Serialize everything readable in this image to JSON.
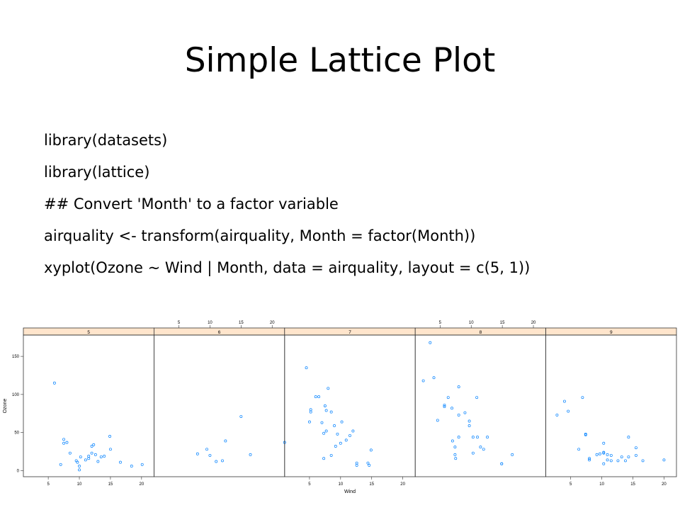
{
  "slide": {
    "title": "Simple Lattice Plot",
    "code_lines": [
      "library(datasets)",
      "library(lattice)",
      "## Convert 'Month' to a factor variable",
      "airquality <- transform(airquality, Month = factor(Month))",
      "xyplot(Ozone ~ Wind | Month, data = airquality, layout = c(5, 1))"
    ]
  },
  "chart_data": {
    "type": "scatter",
    "title": "",
    "xlabel": "Wind",
    "ylabel": "Ozone",
    "xlim": [
      1,
      22
    ],
    "ylim": [
      -8,
      178
    ],
    "xticks": [
      5,
      10,
      15,
      20
    ],
    "yticks": [
      0,
      50,
      100,
      150
    ],
    "strip_color": "#ffe5cc",
    "point_color": "#0080ff",
    "panels": [
      {
        "name": "5",
        "points": [
          [
            6.0,
            115
          ],
          [
            7.0,
            8
          ],
          [
            7.5,
            41
          ],
          [
            7.5,
            36
          ],
          [
            8.0,
            37
          ],
          [
            8.5,
            23
          ],
          [
            9.5,
            13
          ],
          [
            9.7,
            11
          ],
          [
            10.0,
            1
          ],
          [
            10.0,
            6
          ],
          [
            10.2,
            18
          ],
          [
            11.0,
            14
          ],
          [
            11.5,
            19
          ],
          [
            11.5,
            16
          ],
          [
            12.0,
            23
          ],
          [
            12.0,
            32
          ],
          [
            12.3,
            34
          ],
          [
            12.6,
            21
          ],
          [
            13.0,
            12
          ],
          [
            13.5,
            18
          ],
          [
            14.0,
            19
          ],
          [
            14.9,
            45
          ],
          [
            15.0,
            28
          ],
          [
            16.6,
            11
          ],
          [
            18.4,
            6
          ],
          [
            20.1,
            8
          ]
        ]
      },
      {
        "name": "6",
        "points": [
          [
            8.0,
            22
          ],
          [
            9.5,
            28
          ],
          [
            10.0,
            20
          ],
          [
            11.0,
            12
          ],
          [
            12.0,
            13
          ],
          [
            12.5,
            39
          ],
          [
            15.0,
            71
          ],
          [
            16.5,
            21
          ],
          [
            22.0,
            37
          ]
        ]
      },
      {
        "name": "7",
        "points": [
          [
            4.5,
            135
          ],
          [
            5.0,
            64
          ],
          [
            5.2,
            80
          ],
          [
            5.2,
            77
          ],
          [
            6.0,
            97
          ],
          [
            6.5,
            97
          ],
          [
            7.0,
            63
          ],
          [
            7.3,
            49
          ],
          [
            7.3,
            16
          ],
          [
            7.5,
            85
          ],
          [
            7.7,
            79
          ],
          [
            7.7,
            52
          ],
          [
            8.0,
            108
          ],
          [
            8.5,
            77
          ],
          [
            8.5,
            20
          ],
          [
            9.0,
            59
          ],
          [
            9.2,
            32
          ],
          [
            9.5,
            48
          ],
          [
            10.0,
            36
          ],
          [
            10.2,
            64
          ],
          [
            10.9,
            40
          ],
          [
            11.5,
            46
          ],
          [
            12.0,
            52
          ],
          [
            12.6,
            10
          ],
          [
            12.6,
            7
          ],
          [
            14.9,
            27
          ],
          [
            14.4,
            10
          ],
          [
            14.6,
            7
          ]
        ]
      },
      {
        "name": "8",
        "points": [
          [
            2.3,
            118
          ],
          [
            3.4,
            168
          ],
          [
            4.0,
            122
          ],
          [
            4.6,
            66
          ],
          [
            5.7,
            86
          ],
          [
            5.7,
            84
          ],
          [
            6.3,
            96
          ],
          [
            6.9,
            82
          ],
          [
            7.0,
            39
          ],
          [
            7.4,
            31
          ],
          [
            7.5,
            16
          ],
          [
            7.4,
            21
          ],
          [
            8.0,
            110
          ],
          [
            8.0,
            73
          ],
          [
            8.0,
            44
          ],
          [
            9.0,
            76
          ],
          [
            9.7,
            59
          ],
          [
            9.7,
            65
          ],
          [
            10.3,
            44
          ],
          [
            10.3,
            23
          ],
          [
            10.9,
            96
          ],
          [
            11.0,
            44
          ],
          [
            11.5,
            31
          ],
          [
            12.0,
            28
          ],
          [
            12.6,
            44
          ],
          [
            14.9,
            9
          ],
          [
            14.9,
            9
          ],
          [
            16.6,
            21
          ]
        ]
      },
      {
        "name": "9",
        "points": [
          [
            2.8,
            73
          ],
          [
            4.0,
            91
          ],
          [
            4.6,
            78
          ],
          [
            6.3,
            28
          ],
          [
            6.9,
            96
          ],
          [
            7.4,
            47
          ],
          [
            7.4,
            48
          ],
          [
            8.0,
            16
          ],
          [
            8.0,
            14
          ],
          [
            9.2,
            21
          ],
          [
            9.7,
            22
          ],
          [
            10.3,
            23
          ],
          [
            10.3,
            9
          ],
          [
            10.3,
            24
          ],
          [
            10.3,
            36
          ],
          [
            10.9,
            21
          ],
          [
            10.9,
            14
          ],
          [
            11.5,
            20
          ],
          [
            11.5,
            13
          ],
          [
            12.6,
            13
          ],
          [
            13.2,
            18
          ],
          [
            13.8,
            13
          ],
          [
            14.3,
            44
          ],
          [
            14.3,
            18
          ],
          [
            15.5,
            30
          ],
          [
            15.5,
            20
          ],
          [
            16.6,
            13
          ],
          [
            20.0,
            14
          ]
        ]
      }
    ]
  }
}
